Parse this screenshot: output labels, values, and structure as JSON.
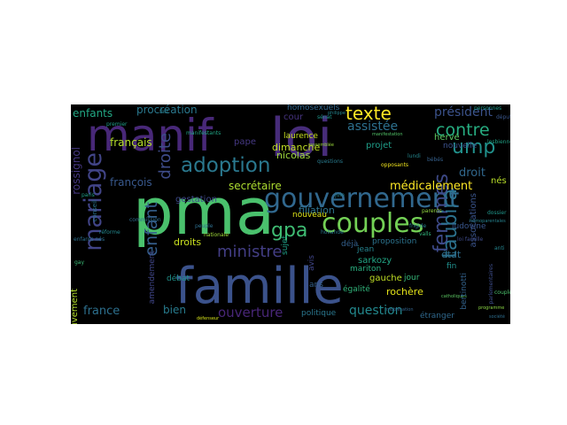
{
  "wordcloud": {
    "background": "#000000",
    "words": [
      {
        "text": "famille",
        "color": "#3b528b"
      },
      {
        "text": "manif",
        "color": "#482878"
      },
      {
        "text": "pma",
        "color": "#4ac16d"
      },
      {
        "text": "loi",
        "color": "#472c7a"
      },
      {
        "text": "gouvernement",
        "color": "#31688e"
      },
      {
        "text": "couples",
        "color": "#73d055"
      },
      {
        "text": "mariage",
        "color": "#414487"
      },
      {
        "text": "adoption",
        "color": "#2a788e"
      },
      {
        "text": "texte",
        "color": "#fde725"
      },
      {
        "text": "ump",
        "color": "#21918c"
      },
      {
        "text": "contre",
        "color": "#27ad81"
      },
      {
        "text": "femmes",
        "color": "#3e4a89"
      },
      {
        "text": "taubira",
        "color": "#2c728e"
      },
      {
        "text": "gpa",
        "color": "#3fbc73"
      },
      {
        "text": "ministre",
        "color": "#433e85"
      },
      {
        "text": "enfant",
        "color": "#355f8d"
      },
      {
        "text": "droite",
        "color": "#3e4c8a"
      },
      {
        "text": "enfants",
        "color": "#22a884"
      },
      {
        "text": "procréation",
        "color": "#2a788e"
      },
      {
        "text": "président",
        "color": "#3b528b"
      },
      {
        "text": "assistée",
        "color": "#2d708e"
      },
      {
        "text": "français",
        "color": "#b5de2b"
      },
      {
        "text": "françois",
        "color": "#38588c"
      },
      {
        "text": "médicalement",
        "color": "#fde725"
      },
      {
        "text": "filiation",
        "color": "#2c728e"
      },
      {
        "text": "secrétaire",
        "color": "#addc30"
      },
      {
        "text": "nicolas",
        "color": "#9fda3a"
      },
      {
        "text": "dimanche",
        "color": "#c2df23"
      },
      {
        "text": "laurence",
        "color": "#c8e020"
      },
      {
        "text": "cour",
        "color": "#46337f"
      },
      {
        "text": "rossignol",
        "color": "#453781"
      },
      {
        "text": "droit",
        "color": "#31688e"
      },
      {
        "text": "hervé",
        "color": "#5ec962"
      },
      {
        "text": "france",
        "color": "#2d708e"
      },
      {
        "text": "bien",
        "color": "#287c8e"
      },
      {
        "text": "ouverture",
        "color": "#482677"
      },
      {
        "text": "question",
        "color": "#23898e"
      },
      {
        "text": "état",
        "color": "#2e6e8e"
      },
      {
        "text": "droits",
        "color": "#cae11f"
      },
      {
        "text": "gestation",
        "color": "#3e4989"
      },
      {
        "text": "nouveau",
        "color": "#dde318"
      },
      {
        "text": "projet",
        "color": "#1f9e89"
      },
      {
        "text": "pape",
        "color": "#453882"
      },
      {
        "text": "sarkozy",
        "color": "#22a785"
      },
      {
        "text": "rochère",
        "color": "#e5e419"
      },
      {
        "text": "égalité",
        "color": "#31b57b"
      },
      {
        "text": "gauche",
        "color": "#c0df25"
      },
      {
        "text": "débat",
        "color": "#20928c"
      },
      {
        "text": "mouvement",
        "color": "#b2dd2d"
      },
      {
        "text": "amendement",
        "color": "#404688"
      },
      {
        "text": "proposition",
        "color": "#2c738e"
      },
      {
        "text": "ludovine",
        "color": "#39568c"
      },
      {
        "text": "jean",
        "color": "#25838e"
      },
      {
        "text": "jour",
        "color": "#35b779"
      },
      {
        "text": "fin",
        "color": "#21908d"
      },
      {
        "text": "associations",
        "color": "#3a548c"
      },
      {
        "text": "étranger",
        "color": "#30698e"
      },
      {
        "text": "homosexuels",
        "color": "#31678e"
      },
      {
        "text": "nés",
        "color": "#b8de29"
      },
      {
        "text": "déjà",
        "color": "#34608d"
      },
      {
        "text": "sujet",
        "color": "#1fa088"
      },
      {
        "text": "mariton",
        "color": "#29af7f"
      },
      {
        "text": "ans",
        "color": "#34618d"
      },
      {
        "text": "nouvelle",
        "color": "#3b528b"
      },
      {
        "text": "politique",
        "color": "#2a778e"
      },
      {
        "text": "catholiques",
        "color": "#5cc863"
      },
      {
        "text": "avis",
        "color": "#404588"
      },
      {
        "text": "bertinotti",
        "color": "#33638d"
      },
      {
        "text": "parlementaires",
        "color": "#3d4d8a"
      },
      {
        "text": "conseil",
        "color": "#2b758e"
      },
      {
        "text": "commission",
        "color": "#2f6c8e"
      },
      {
        "text": "manifestants",
        "color": "#21a685"
      },
      {
        "text": "personnes",
        "color": "#1e9b8a"
      },
      {
        "text": "sénat",
        "color": "#1f968b"
      },
      {
        "text": "philippe",
        "color": "#25858e"
      },
      {
        "text": "questions",
        "color": "#297b8e"
      },
      {
        "text": "assemblée",
        "color": "#9bd93c"
      },
      {
        "text": "manifestation",
        "color": "#52c569"
      },
      {
        "text": "opposants",
        "color": "#f1e51d"
      },
      {
        "text": "bébés",
        "color": "#36618d"
      },
      {
        "text": "lesbiennes",
        "color": "#20a386"
      },
      {
        "text": "député",
        "color": "#39568c"
      },
      {
        "text": "frigide",
        "color": "#287d8e"
      },
      {
        "text": "valls",
        "color": "#31b57b"
      },
      {
        "text": "peuple",
        "color": "#2e6f8e"
      },
      {
        "text": "nationale",
        "color": "#a0da39"
      },
      {
        "text": "hollande",
        "color": "#2a778e"
      },
      {
        "text": "parents",
        "color": "#94d840"
      },
      {
        "text": "dossier",
        "color": "#1f978b"
      },
      {
        "text": "loi famille",
        "color": "#3e4a89"
      },
      {
        "text": "homoparentales",
        "color": "#26828e"
      },
      {
        "text": "mobilisation",
        "color": "#33638d"
      },
      {
        "text": "programme",
        "color": "#8bd646"
      },
      {
        "text": "société",
        "color": "#2e6e8e"
      },
      {
        "text": "couple",
        "color": "#4cc26c"
      },
      {
        "text": "réforme",
        "color": "#23898e"
      },
      {
        "text": "premier",
        "color": "#1f9e89"
      },
      {
        "text": "enfants nés",
        "color": "#2c718e"
      },
      {
        "text": "gay",
        "color": "#3aba76"
      },
      {
        "text": "anti",
        "color": "#25848e"
      },
      {
        "text": "défenseur",
        "color": "#d5e21a"
      },
      {
        "text": "juin",
        "color": "#26828e"
      },
      {
        "text": "paris",
        "color": "#1fa188"
      },
      {
        "text": "lundi",
        "color": "#24878e"
      },
      {
        "text": "fait",
        "color": "#277f8e"
      }
    ]
  }
}
